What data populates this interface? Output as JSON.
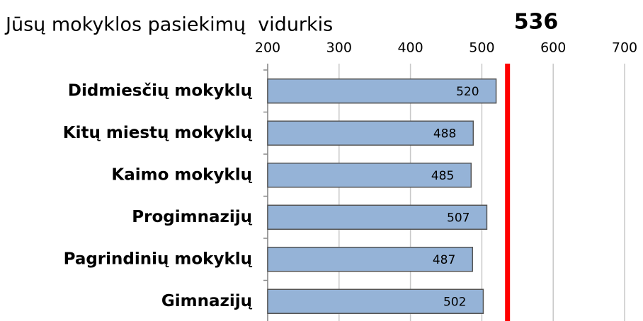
{
  "chart_data": {
    "type": "bar",
    "orientation": "horizontal",
    "title": "Jūsų mokyklos pasiekimų  vidurkis",
    "reference_value": 536,
    "reference_color": "#ff0000",
    "categories": [
      "Didmiesčių mokyklų",
      "Kitų miestų mokyklų",
      "Kaimo mokyklų",
      "Progimnazijų",
      "Pagrindinių mokyklų",
      "Gimnazijų"
    ],
    "values": [
      520,
      488,
      485,
      507,
      487,
      502
    ],
    "color": "#95b3d7",
    "xlim": [
      200,
      700
    ],
    "xticks": [
      200,
      300,
      400,
      500,
      600,
      700
    ],
    "grid": true
  }
}
